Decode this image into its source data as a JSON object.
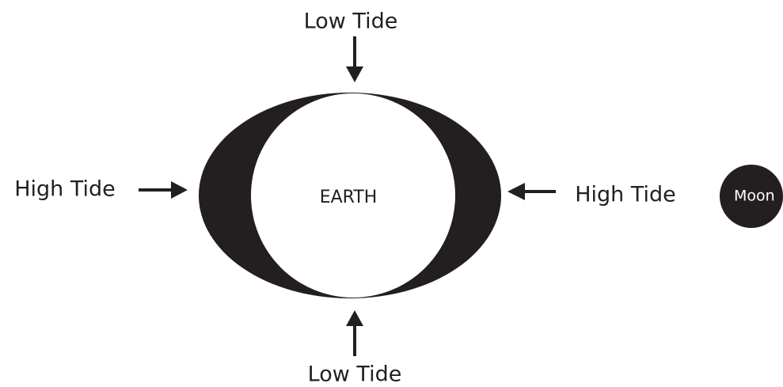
{
  "diagram": {
    "top_label": "Low Tide",
    "bottom_label": "Low Tide",
    "left_label": "High Tide",
    "right_label": "High Tide",
    "earth_label": "EARTH",
    "moon_label": "Moon"
  }
}
